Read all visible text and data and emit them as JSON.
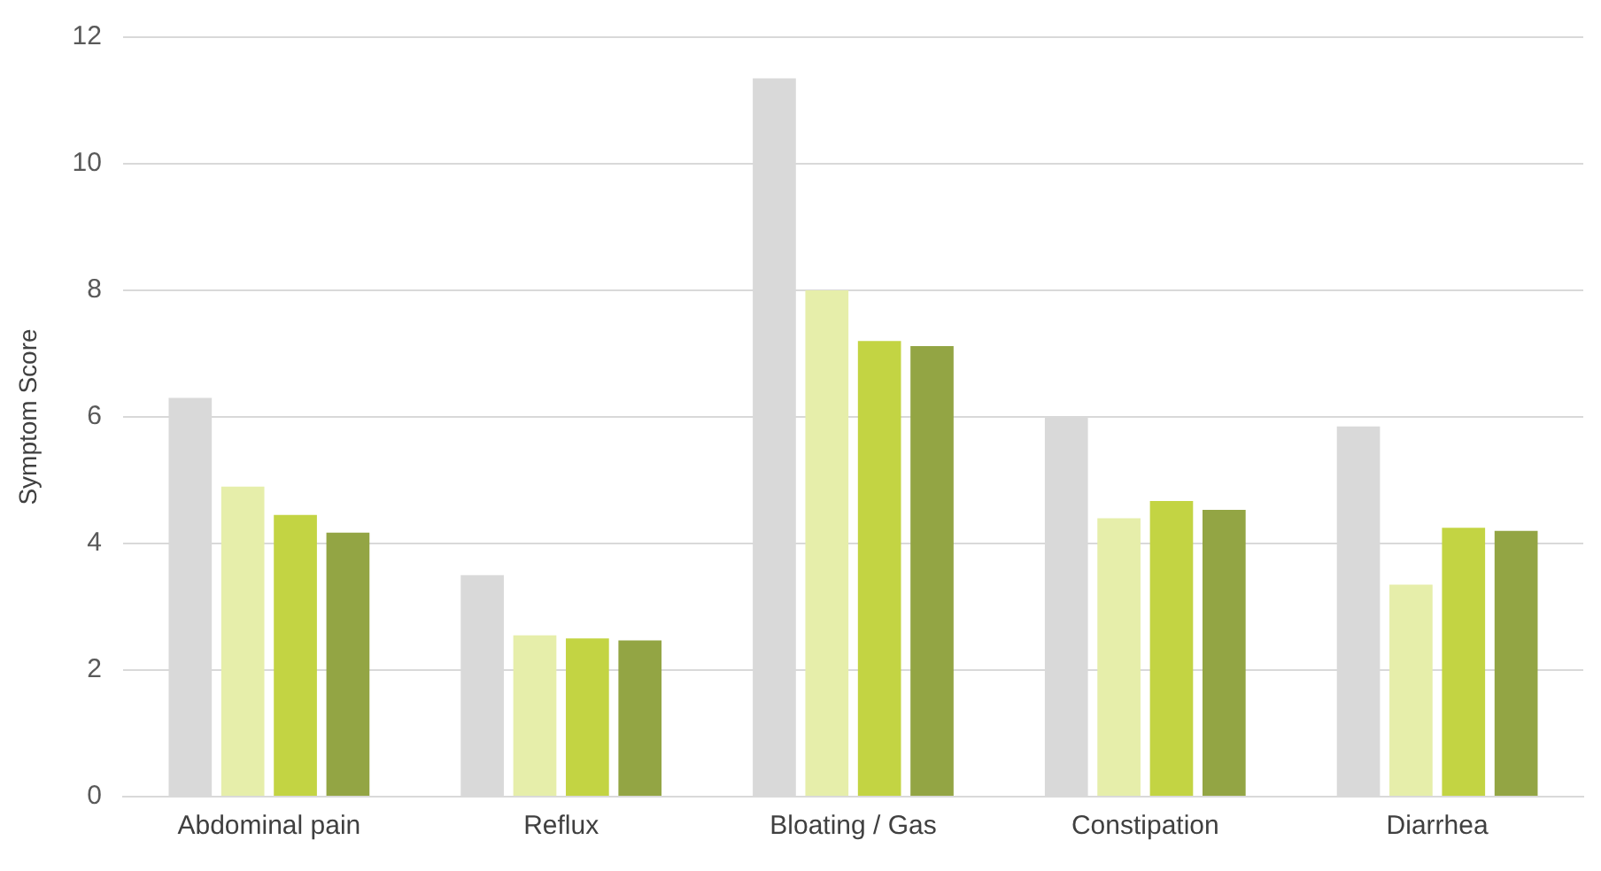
{
  "chart_data": {
    "type": "bar",
    "ylabel": "Symptom Score",
    "categories": [
      "Abdominal pain",
      "Reflux",
      "Bloating / Gas",
      "Constipation",
      "Diarrhea"
    ],
    "series": [
      {
        "color": "#d9d9d9",
        "values": [
          6.3,
          3.5,
          11.35,
          6.0,
          5.85
        ]
      },
      {
        "color": "#e6eeaa",
        "values": [
          4.9,
          2.55,
          8.0,
          4.4,
          3.35
        ]
      },
      {
        "color": "#c3d443",
        "values": [
          4.45,
          2.5,
          7.2,
          4.67,
          4.25
        ]
      },
      {
        "color": "#93a544",
        "values": [
          4.17,
          2.47,
          7.12,
          4.53,
          4.2
        ]
      }
    ],
    "ylim": [
      0,
      12
    ],
    "yticks": [
      0,
      2,
      4,
      6,
      8,
      10,
      12
    ],
    "grid": "y",
    "legend": false
  }
}
